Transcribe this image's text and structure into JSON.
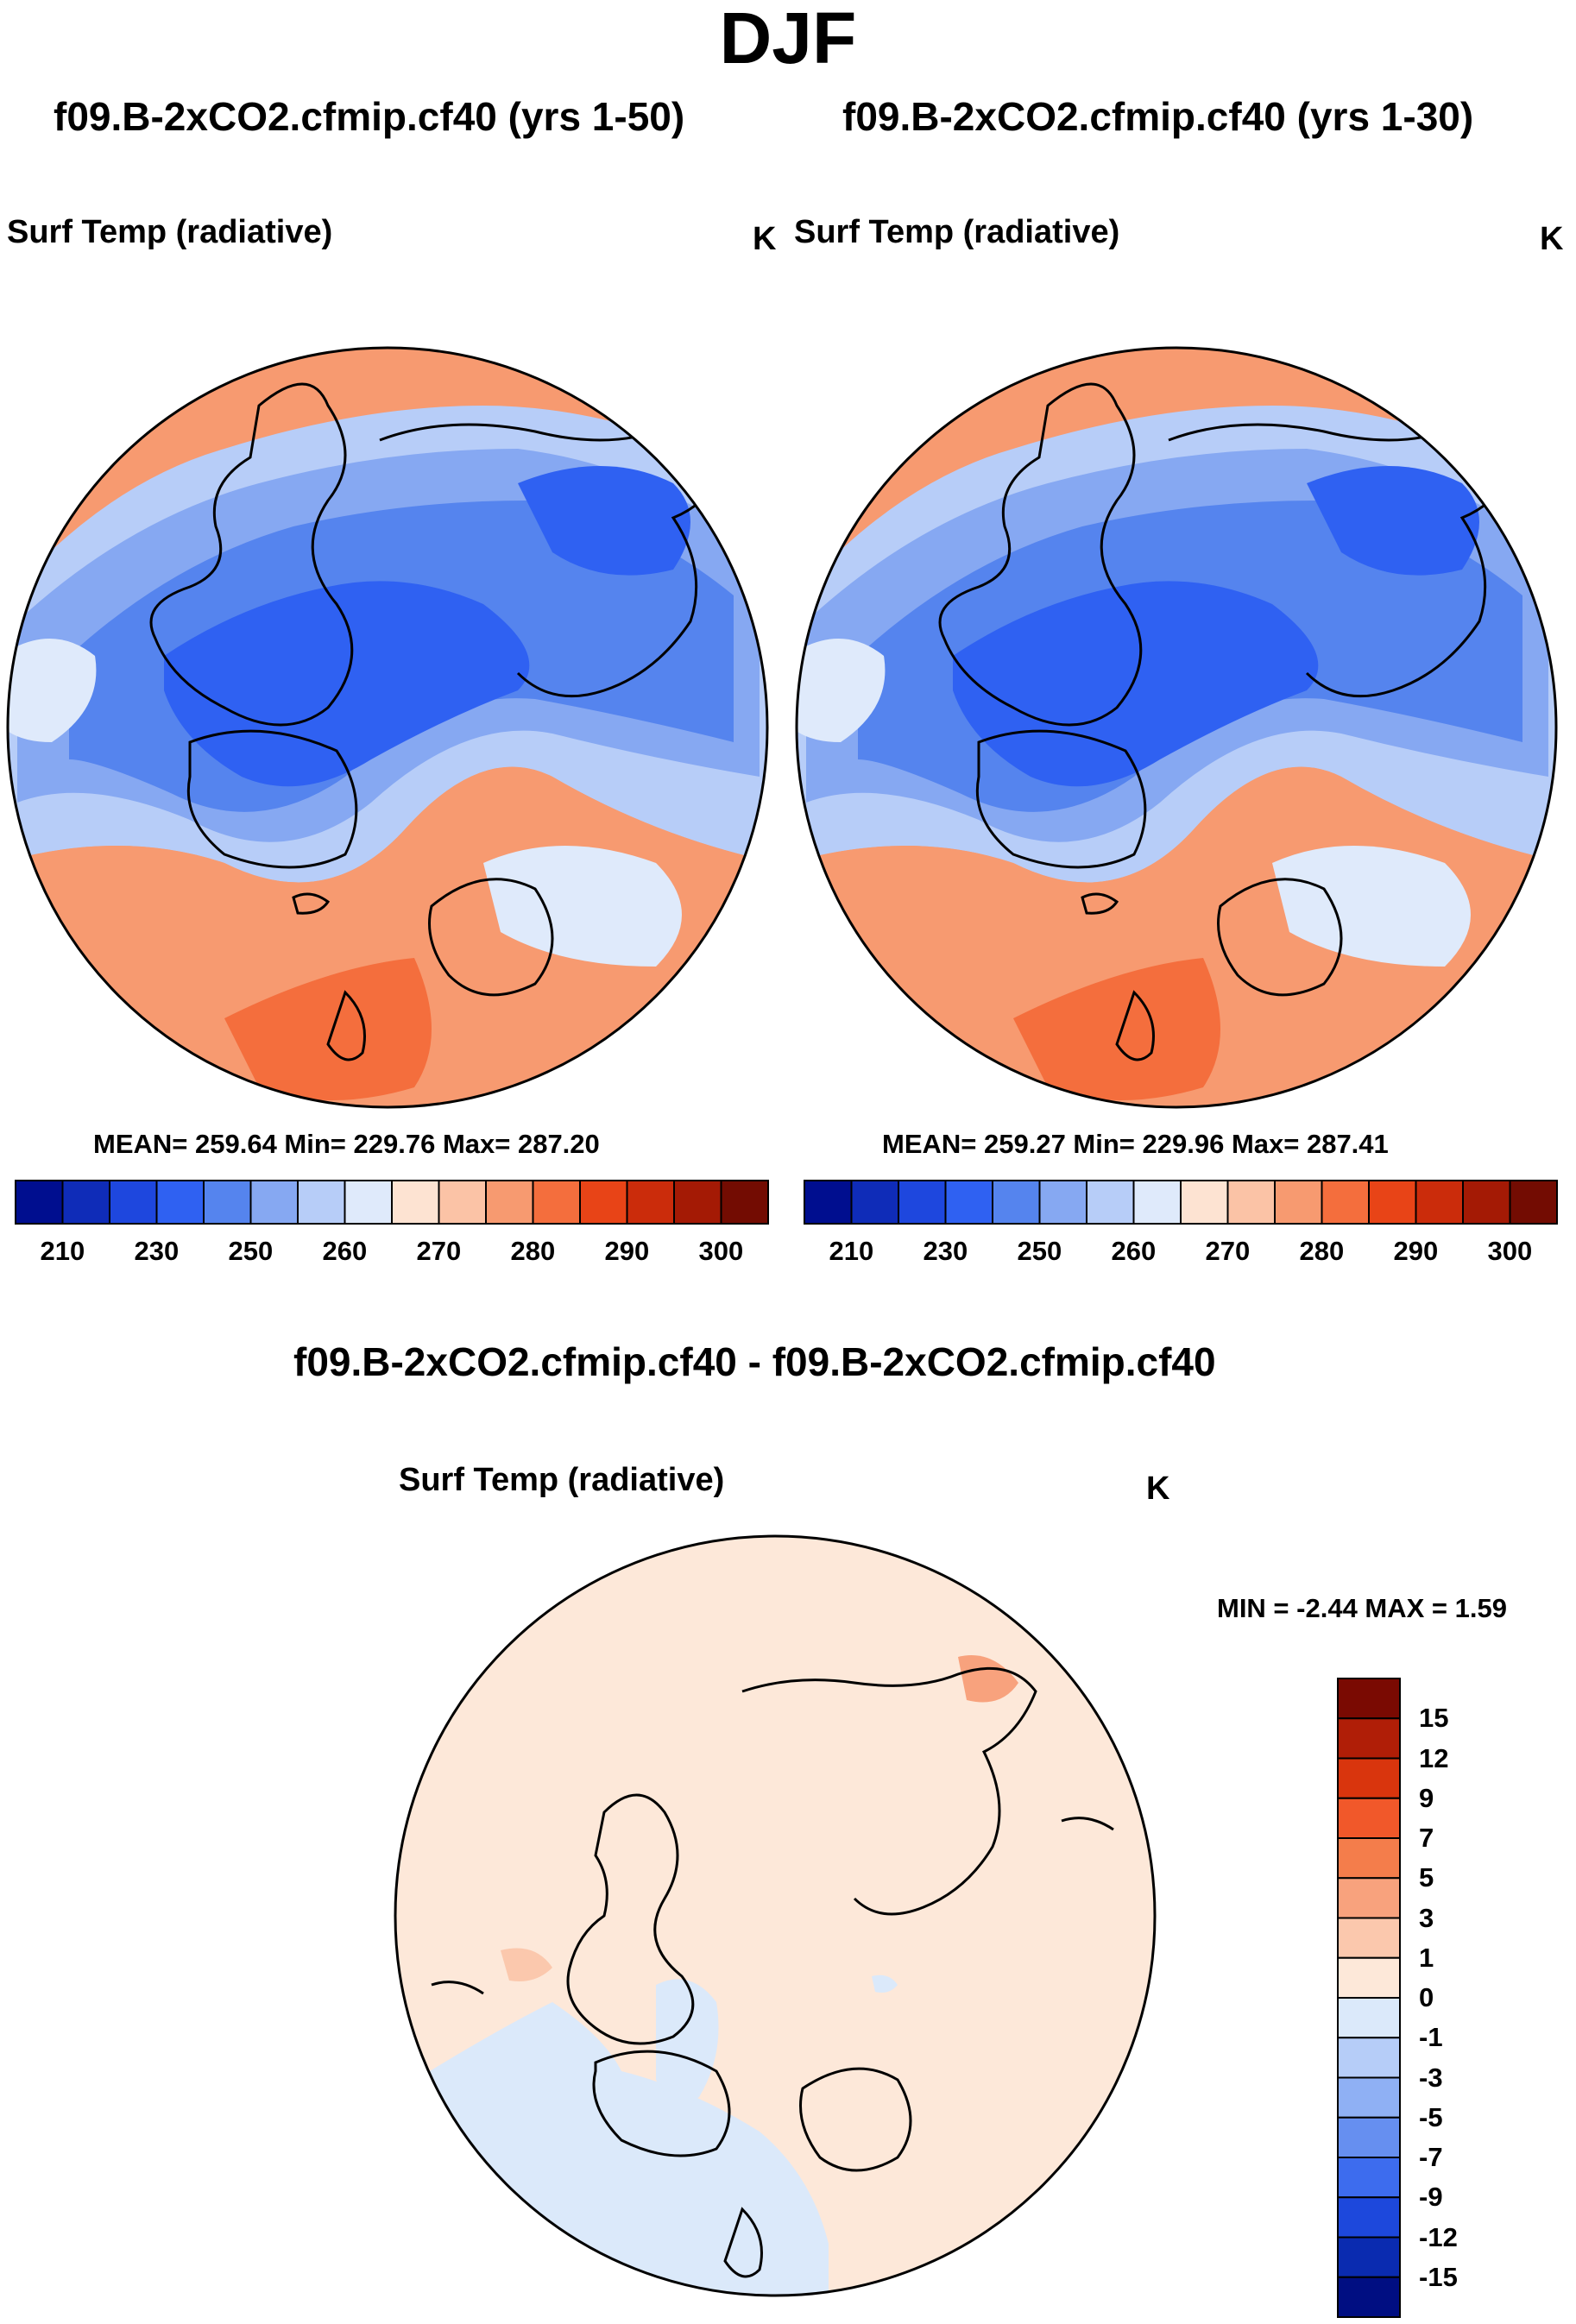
{
  "figure": {
    "title": "DJF",
    "panels": [
      {
        "run_title": "f09.B-2xCO2.cfmip.cf40 (yrs 1-50)",
        "variable": "Surf Temp (radiative)",
        "units": "K",
        "stats": "MEAN= 259.64  Min= 229.76  Max= 287.20"
      },
      {
        "run_title": "f09.B-2xCO2.cfmip.cf40 (yrs 1-30)",
        "variable": "Surf Temp (radiative)",
        "units": "K",
        "stats": "MEAN= 259.27  Min= 229.96  Max= 287.41"
      }
    ],
    "diff": {
      "title": "f09.B-2xCO2.cfmip.cf40 - f09.B-2xCO2.cfmip.cf40",
      "variable": "Surf Temp (radiative)",
      "units": "K",
      "stats": "MIN =  -2.44 MAX =   1.59"
    }
  },
  "chart_data": [
    {
      "type": "heatmap",
      "projection": "north-polar-stereographic",
      "title": "f09.B-2xCO2.cfmip.cf40 (yrs 1-50)",
      "variable": "Surf Temp (radiative)",
      "units": "K",
      "mean": 259.64,
      "min": 229.76,
      "max": 287.2,
      "colorbar_ticks": [
        210,
        230,
        250,
        260,
        270,
        280,
        290,
        300
      ],
      "colorbar_colors": [
        "#000e8f",
        "#0f2cb8",
        "#1e47de",
        "#2f61f2",
        "#5584ee",
        "#86a8f2",
        "#b7cdf8",
        "#dfeafb",
        "#fde3d2",
        "#fbc3a6",
        "#f79a70",
        "#f46e3d",
        "#e84417",
        "#cb2c0b",
        "#a41a05",
        "#730c02"
      ]
    },
    {
      "type": "heatmap",
      "projection": "north-polar-stereographic",
      "title": "f09.B-2xCO2.cfmip.cf40 (yrs 1-30)",
      "variable": "Surf Temp (radiative)",
      "units": "K",
      "mean": 259.27,
      "min": 229.96,
      "max": 287.41,
      "colorbar_ticks": [
        210,
        230,
        250,
        260,
        270,
        280,
        290,
        300
      ],
      "colorbar_colors": [
        "#000e8f",
        "#0f2cb8",
        "#1e47de",
        "#2f61f2",
        "#5584ee",
        "#86a8f2",
        "#b7cdf8",
        "#dfeafb",
        "#fde3d2",
        "#fbc3a6",
        "#f79a70",
        "#f46e3d",
        "#e84417",
        "#cb2c0b",
        "#a41a05",
        "#730c02"
      ]
    },
    {
      "type": "heatmap",
      "projection": "north-polar-stereographic",
      "title": "f09.B-2xCO2.cfmip.cf40 - f09.B-2xCO2.cfmip.cf40",
      "variable": "Surf Temp (radiative)",
      "units": "K",
      "min": -2.44,
      "max": 1.59,
      "colorbar_ticks": [
        15,
        12,
        9,
        7,
        5,
        3,
        1,
        0,
        -1,
        -3,
        -5,
        -7,
        -9,
        -12,
        -15
      ],
      "colorbar_colors": [
        "#7a0a02",
        "#b01e07",
        "#d9350d",
        "#f1582a",
        "#f47d4b",
        "#f8a27d",
        "#fbc8ad",
        "#fde8d9",
        "#dbe9fa",
        "#b6cdf8",
        "#8fb0f4",
        "#668ff0",
        "#3d6cee",
        "#1d48dc",
        "#0a2bb0",
        "#000e82"
      ]
    }
  ]
}
